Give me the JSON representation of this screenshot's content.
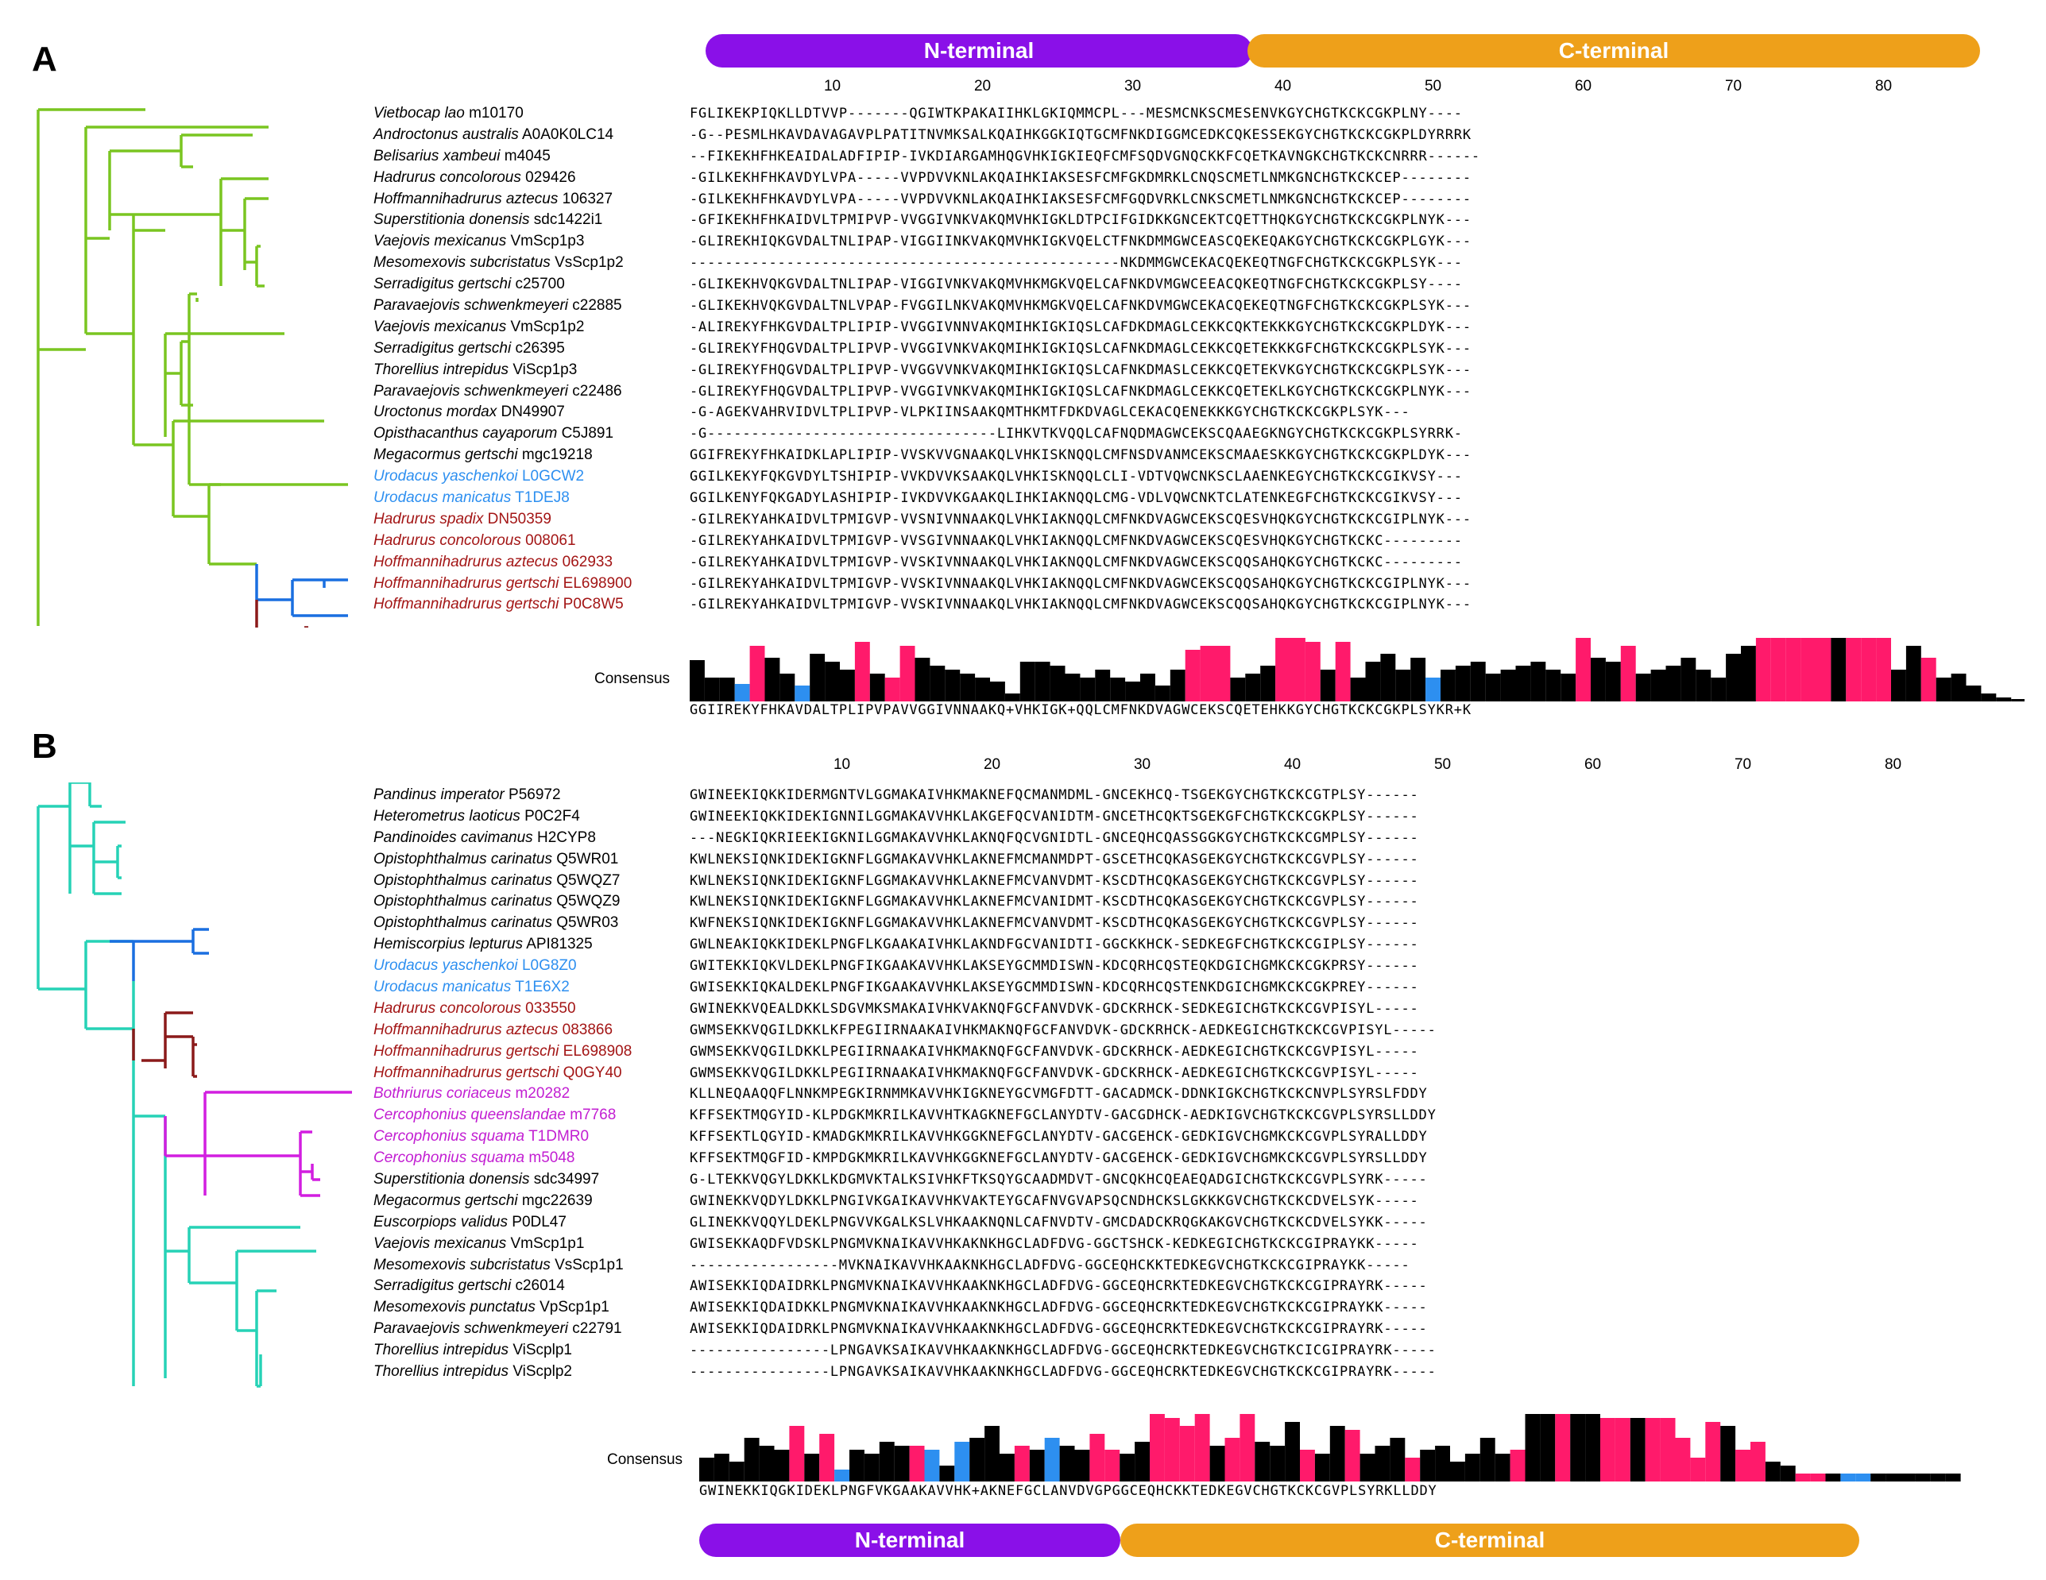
{
  "colors": {
    "nterm": "#8a10e8",
    "cterm": "#eea01a",
    "black": "#000000",
    "pink": "#ff1a6b",
    "blue": "#2d8ff0",
    "treeA": "#7ac521",
    "treeB": "#26d2b6",
    "cladeBlue": "#1a6fe0",
    "cladeRed": "#8b1a1a",
    "cladeMagenta": "#d21ee0"
  },
  "panelA": {
    "letter": "A",
    "nterm_label": "N-terminal",
    "cterm_label": "C-terminal",
    "ticks": [
      "10",
      "20",
      "30",
      "40",
      "50",
      "60",
      "70",
      "80"
    ],
    "consensus_label": "Consensus",
    "consensus_seq": "GGIIREKYFHKAVDALTPLIPVPAVVGGIVNNAAKQ+VHKIGK+QQLCMFNKDVAGWCEKSCQETEHKKGYCHGTKCKCGKPLSYKR+K",
    "consensus_cols": [
      "k",
      "k",
      "k",
      "b",
      "p",
      "k",
      "k",
      "b",
      "k",
      "k",
      "k",
      "p",
      "k",
      "p",
      "p",
      "k",
      "k",
      "k",
      "k",
      "k",
      "k",
      "k",
      "k",
      "k",
      "k",
      "k",
      "k",
      "k",
      "k",
      "k",
      "k",
      "k",
      "k",
      "p",
      "p",
      "p",
      "k",
      "k",
      "k",
      "p",
      "p",
      "p",
      "k",
      "p",
      "k",
      "k",
      "k",
      "k",
      "k",
      "b",
      "k",
      "k",
      "k",
      "k",
      "k",
      "k",
      "k",
      "k",
      "k",
      "p",
      "k",
      "k",
      "p",
      "k",
      "k",
      "k",
      "k",
      "k",
      "k",
      "k",
      "k",
      "p",
      "p",
      "p",
      "p",
      "p",
      "k",
      "p",
      "p",
      "p",
      "k",
      "k",
      "p",
      "k",
      "k",
      "k",
      "k",
      "k",
      "k"
    ],
    "consensus_h": [
      52,
      30,
      30,
      22,
      70,
      55,
      35,
      20,
      60,
      50,
      40,
      75,
      35,
      30,
      70,
      55,
      45,
      40,
      35,
      30,
      25,
      10,
      50,
      50,
      45,
      35,
      30,
      40,
      30,
      25,
      35,
      20,
      40,
      65,
      70,
      70,
      30,
      35,
      45,
      80,
      80,
      75,
      40,
      75,
      30,
      50,
      60,
      40,
      55,
      30,
      40,
      45,
      50,
      35,
      40,
      45,
      50,
      40,
      35,
      80,
      55,
      50,
      70,
      35,
      40,
      45,
      55,
      40,
      30,
      60,
      70,
      80,
      80,
      80,
      80,
      80,
      80,
      80,
      80,
      80,
      40,
      70,
      55,
      30,
      35,
      20,
      10,
      5,
      3
    ],
    "taxa": [
      {
        "genus": "Vietbocap lao",
        "id": "m10170",
        "color": "#000000",
        "seq": "FGLIKEKPIQKLLDTVVP-------QGIWTKPAKAIIHKLGKIQMMCPL---MESMCNKSCMESENVKGYCHGTKCKCGKPLNY----"
      },
      {
        "genus": "Androctonus australis",
        "id": "A0A0K0LC14",
        "color": "#000000",
        "seq": "-G--PESMLHKAVDAVAGAVPLPATITNVMKSALKQAIHKGGKIQTGCMFNKDIGGMCEDKCQKESSEKGYCHGTKCKCGKPLDYRRRK"
      },
      {
        "genus": "Belisarius xambeui",
        "id": "m4045",
        "color": "#000000",
        "seq": "--FIKEKHFHKEAIDALADFIPIP-IVKDIARGAMHQGVHKIGKIEQFCMFSQDVGNQCKKFCQETKAVNGKCHGTKCKCNRRR------"
      },
      {
        "genus": "Hadrurus concolorous",
        "id": "029426",
        "color": "#000000",
        "seq": "-GILKEKHFHKAVDYLVPA-----VVPDVVKNLAKQAIHKIAKSESFCMFGKDMRKLCNQSCMETLNMKGNCHGTKCKCEP--------"
      },
      {
        "genus": "Hoffmannihadrurus aztecus",
        "id": "106327",
        "color": "#000000",
        "seq": "-GILKEKHFHKAVDYLVPA-----VVPDVVKNLAKQAIHKIAKSESFCMFGQDVRKLCNKSCMETLNMKGNCHGTKCKCEP--------"
      },
      {
        "genus": "Superstitionia donensis",
        "id": "sdc1422i1",
        "color": "#000000",
        "seq": "-GFIKEKHFHKAIDVLTPMIPVP-VVGGIVNKVAKQMVHKIGKLDTPCIFGIDKKGNCEKTCQETTHQKGYCHGTKCKCGKPLNYK---"
      },
      {
        "genus": "Vaejovis mexicanus",
        "id": "VmScp1p3",
        "color": "#000000",
        "seq": "-GLIREKHIQKGVDALTNLIPAP-VIGGIINKVAKQMVHKIGKVQELCTFNKDMMGWCEASCQEKEQAKGYCHGTKCKCGKPLGYK---"
      },
      {
        "genus": "Mesomexovis subcristatus",
        "id": "VsScp1p2",
        "color": "#000000",
        "seq": "-------------------------------------------------NKDMMGWCEKACQEKEQTNGFCHGTKCKCGKPLSYK---"
      },
      {
        "genus": "Serradigitus gertschi",
        "id": "c25700",
        "color": "#000000",
        "seq": "-GLIKEKHVQKGVDALTNLIPAP-VIGGIVNKVAKQMVHKMGKVQELCAFNKDVMGWCEEACQKEQTNGFCHGTKCKCGKPLSY----"
      },
      {
        "genus": "Paravaejovis schwenkmeyeri",
        "id": "c22885",
        "color": "#000000",
        "seq": "-GLIKEKHVQKGVDALTNLVPAP-FVGGILNKVAKQMVHKMGKVQELCAFNKDVMGWCEKACQEKEQTNGFCHGTKCKCGKPLSYK---"
      },
      {
        "genus": "Vaejovis mexicanus",
        "id": "VmScp1p2",
        "color": "#000000",
        "seq": "-ALIREKYFHKGVDALTPLIPIP-VVGGIVNNVAKQMIHKIGKIQSLCAFDKDMAGLCEKKCQKTEKKKGYCHGTKCKCGKPLDYK---"
      },
      {
        "genus": "Serradigitus gertschi",
        "id": "c26395",
        "color": "#000000",
        "seq": "-GLIREKYFHQGVDALTPLIPVP-VVGGIVNKVAKQMIHKIGKIQSLCAFNKDMAGLCEKKCQETEKKKGFCHGTKCKCGKPLSYK---"
      },
      {
        "genus": "Thorellius intrepidus",
        "id": "ViScp1p3",
        "color": "#000000",
        "seq": "-GLIREKYFHQGVDALTPLIPVP-VVGGVVNKVAKQMIHKIGKIQSLCAFNKDMASLCEKKCQETEKVKGYCHGTKCKCGKPLSYK---"
      },
      {
        "genus": "Paravaejovis schwenkmeyeri",
        "id": "c22486",
        "color": "#000000",
        "seq": "-GLIREKYFHQGVDALTPLIPVP-VVGGIVNKVAKQMIHKIGKIQSLCAFNKDMAGLCEKKCQETEKLKGYCHGTKCKCGKPLNYK---"
      },
      {
        "genus": "Uroctonus mordax",
        "id": "DN49907",
        "color": "#000000",
        "seq": "-G-AGEKVAHRVIDVLTPLIPVP-VLPKIINSAAKQMTHKMTFDKDVAGLCEKACQENEKKKGYCHGTKCKCGKPLSYK---"
      },
      {
        "genus": "Opisthacanthus cayaporum",
        "id": "C5J891",
        "color": "#000000",
        "seq": "-G---------------------------------LIHKVTKVQQLCAFNQDMAGWCEKSCQAAEGKNGYCHGTKCKCGKPLSYRRK-"
      },
      {
        "genus": "Megacormus gertschi",
        "id": "mgc19218",
        "color": "#000000",
        "seq": "GGIFREKYFHKAIDKLAPLIPIP-VVSKVVGNAAKQLVHKISKNQQLCMFNSDVANMCEKSCMAAESKKGYCHGTKCKCGKPLDYK---"
      },
      {
        "genus": "Urodacus yaschenkoi",
        "id": "L0GCW2",
        "color": "#2d8ff0",
        "seq": "GGILKEKYFQKGVDYLTSHIPIP-VVKDVVKSAAKQLVHKISKNQQLCLI-VDTVQWCNKSCLAAENKEGYCHGTKCKCGIKVSY---"
      },
      {
        "genus": "Urodacus manicatus",
        "id": "T1DEJ8",
        "color": "#2d8ff0",
        "seq": "GGILKENYFQKGADYLASHIPIP-IVKDVVKGAAKQLIHKIAKNQQLCMG-VDLVQWCNKTCLATENKEGFCHGTKCKCGIKVSY---"
      },
      {
        "genus": "Hadrurus spadix",
        "id": "DN50359",
        "color": "#a31515",
        "seq": "-GILREKYAHKAIDVLTPMIGVP-VVSNIVNNAAKQLVHKIAKNQQLCMFNKDVAGWCEKSCQESVHQKGYCHGTKCKCGIPLNYK---"
      },
      {
        "genus": "Hadrurus concolorous",
        "id": "008061",
        "color": "#a31515",
        "seq": "-GILREKYAHKAIDVLTPMIGVP-VVSGIVNNAAKQLVHKIAKNQQLCMFNKDVAGWCEKSCQESVHQKGYCHGTKCKC---------"
      },
      {
        "genus": "Hoffmannihadrurus aztecus",
        "id": "062933",
        "color": "#a31515",
        "seq": "-GILREKYAHKAIDVLTPMIGVP-VVSKIVNNAAKQLVHKIAKNQQLCMFNKDVAGWCEKSCQQSAHQKGYCHGTKCKC---------"
      },
      {
        "genus": "Hoffmannihadrurus gertschi",
        "id": "EL698900",
        "color": "#a31515",
        "seq": "-GILREKYAHKAIDVLTPMIGVP-VVSKIVNNAAKQLVHKIAKNQQLCMFNKDVAGWCEKSCQQSAHQKGYCHGTKCKCGIPLNYK---"
      },
      {
        "genus": "Hoffmannihadrurus gertschi",
        "id": "P0C8W5",
        "color": "#a31515",
        "seq": "-GILREKYAHKAIDVLTPMIGVP-VVSKIVNNAAKQLVHKIAKNQQLCMFNKDVAGWCEKSCQQSAHQKGYCHGTKCKCGIPLNYK---"
      }
    ]
  },
  "panelB": {
    "letter": "B",
    "nterm_label": "N-terminal",
    "cterm_label": "C-terminal",
    "ticks": [
      "10",
      "20",
      "30",
      "40",
      "50",
      "60",
      "70",
      "80"
    ],
    "consensus_label": "Consensus",
    "consensus_seq": "GWINEKKIQGKIDEKLPNGFVKGAAKAVVHK+AKNEFGCLANVDVGPGGCEQHCKKTEDKEGVCHGTKCKCGVPLSYRKLLDDY",
    "consensus_cols": [
      "k",
      "k",
      "k",
      "k",
      "k",
      "k",
      "p",
      "k",
      "p",
      "b",
      "k",
      "k",
      "k",
      "k",
      "p",
      "b",
      "k",
      "b",
      "k",
      "k",
      "k",
      "p",
      "k",
      "b",
      "k",
      "k",
      "p",
      "p",
      "k",
      "k",
      "p",
      "p",
      "p",
      "p",
      "k",
      "p",
      "p",
      "k",
      "k",
      "k",
      "p",
      "k",
      "k",
      "p",
      "k",
      "k",
      "k",
      "p",
      "k",
      "k",
      "k",
      "k",
      "k",
      "k",
      "p",
      "k",
      "k",
      "p",
      "k",
      "k",
      "p",
      "p",
      "k",
      "p",
      "p",
      "p",
      "p",
      "p",
      "k",
      "p",
      "p",
      "k",
      "k",
      "p",
      "p",
      "k",
      "b",
      "b",
      "k",
      "k",
      "k",
      "k",
      "k",
      "k"
    ],
    "consensus_h": [
      30,
      35,
      25,
      55,
      45,
      40,
      70,
      35,
      60,
      15,
      40,
      35,
      50,
      45,
      45,
      40,
      20,
      50,
      55,
      70,
      35,
      45,
      40,
      55,
      45,
      40,
      60,
      40,
      35,
      50,
      85,
      80,
      70,
      85,
      45,
      55,
      85,
      50,
      45,
      75,
      40,
      35,
      70,
      65,
      35,
      45,
      55,
      30,
      40,
      45,
      25,
      35,
      55,
      35,
      40,
      85,
      85,
      85,
      85,
      85,
      80,
      80,
      80,
      80,
      80,
      55,
      30,
      75,
      70,
      40,
      50,
      25,
      20,
      10,
      10,
      10,
      10,
      10,
      10,
      10,
      10,
      10,
      10,
      10
    ],
    "taxa": [
      {
        "genus": "Pandinus imperator",
        "id": "P56972",
        "color": "#000000",
        "seq": "GWINEEKIQKKIDERMGNTVLGGMAKAIVHKMAKNEFQCMANMDML-GNCEKHCQ-TSGEKGYCHGTKCKCGTPLSY------"
      },
      {
        "genus": "Heterometrus laoticus",
        "id": "P0C2F4",
        "color": "#000000",
        "seq": "GWINEEKIQKKIDEKIGNNILGGMAKAVVHKLAKGEFQCVANIDTM-GNCETHCQKTSGEKGFCHGTKCKCGKPLSY------"
      },
      {
        "genus": "Pandinoides cavimanus",
        "id": "H2CYP8",
        "color": "#000000",
        "seq": "---NEGKIQKRIEEKIGKNILGGMAKAVVHKLAKNQFQCVGNIDTL-GNCEQHCQASSGGKGYCHGTKCKCGMPLSY------"
      },
      {
        "genus": "Opistophthalmus carinatus",
        "id": "Q5WR01",
        "color": "#000000",
        "seq": "KWLNEKSIQNKIDEKIGKNFLGGMAKAVVHKLAKNEFMCMANMDPT-GSCETHCQKASGEKGYCHGTKCKCGVPLSY------"
      },
      {
        "genus": "Opistophthalmus carinatus",
        "id": "Q5WQZ7",
        "color": "#000000",
        "seq": "KWLNEKSIQNKIDEKIGKNFLGGMAKAVVHKLAKNEFMCVANVDMT-KSCDTHCQKASGEKGYCHGTKCKCGVPLSY------"
      },
      {
        "genus": "Opistophthalmus carinatus",
        "id": "Q5WQZ9",
        "color": "#000000",
        "seq": "KWLNEKSIQNKIDEKIGKNFLGGMAKAVVHKLAKNEFMCVANIDMT-KSCDTHCQKASGEKGYCHGTKCKCGVPLSY------"
      },
      {
        "genus": "Opistophthalmus carinatus",
        "id": "Q5WR03",
        "color": "#000000",
        "seq": "KWFNEKSIQNKIDEKIGKNFLGGMAKAVVHKLAKNEFMCVANVDMT-KSCDTHCQKASGEKGYCHGTKCKCGVPLSY------"
      },
      {
        "genus": "Hemiscorpius lepturus",
        "id": "API81325",
        "color": "#000000",
        "seq": "GWLNEAKIQKKIDEKLPNGFLKGAAKAIVHKLAKNDFGCVANIDTI-GGCKKHCK-SEDKEGFCHGTKCKCGIPLSY------"
      },
      {
        "genus": "Urodacus yaschenkoi",
        "id": "L0G8Z0",
        "color": "#2d8ff0",
        "seq": "GWITEKKIQKVLDEKLPNGFIKGAAKAVVHKLAKSEYGCMMDISWN-KDCQRHCQSTEQKDGICHGMKCKCGKPRSY------"
      },
      {
        "genus": "Urodacus manicatus",
        "id": "T1E6X2",
        "color": "#2d8ff0",
        "seq": "GWISEKKIQKALDEKLPNGFIKGAAKAVVHKLAKSEYGCMMDISWN-KDCQRHCQSTENKDGICHGMKCKCGKPREY------"
      },
      {
        "genus": "Hadrurus concolorous",
        "id": "033550",
        "color": "#a31515",
        "seq": "GWINEKKVQEALDKKLSDGVMKSMAKAIVHKVAKNQFGCFANVDVK-GDCKRHCK-SEDKEGICHGTKCKCGVPISYL-----"
      },
      {
        "genus": "Hoffmannihadrurus aztecus",
        "id": "083866",
        "color": "#a31515",
        "seq": "GWMSEKKVQGILDKKLKFPEGIIRNAAKAIVHKMAKNQFGCFANVDVK-GDCKRHCK-AEDKEGICHGTKCKCGVPISYL-----"
      },
      {
        "genus": "Hoffmannihadrurus gertschi",
        "id": "EL698908",
        "color": "#a31515",
        "seq": "GWMSEKKVQGILDKKLPEGIIRNAAKAIVHKMAKNQFGCFANVDVK-GDCKRHCK-AEDKEGICHGTKCKCGVPISYL-----"
      },
      {
        "genus": "Hoffmannihadrurus gertschi",
        "id": "Q0GY40",
        "color": "#a31515",
        "seq": "GWMSEKKVQGILDKKLPEGIIRNAAKAIVHKMAKNQFGCFANVDVK-GDCKRHCK-AEDKEGICHGTKCKCGVPISYL-----"
      },
      {
        "genus": "Bothriurus coriaceus",
        "id": "m20282",
        "color": "#c21ed2",
        "seq": "KLLNEQAAQQFLNNKMPEGKIRNMMKAVVHKIGKNEYGCVMGFDTT-GACADMCK-DDNKIGKCHGTKCKCNVPLSYRSLFDDY"
      },
      {
        "genus": "Cercophonius queenslandae",
        "id": "m7768",
        "color": "#c21ed2",
        "seq": "KFFSEKTMQGYID-KLPDGKMKRILKAVVHTKAGKNEFGCLANYDTV-GACGDHCK-AEDKIGVCHGTKCKCGVPLSYRSLLDDY"
      },
      {
        "genus": "Cercophonius squama",
        "id": "T1DMR0",
        "color": "#c21ed2",
        "seq": "KFFSEKTLQGYID-KMADGKMKRILKAVVHKGGKNEFGCLANYDTV-GACGEHCK-GEDKIGVCHGMKCKCGVPLSYRALLDDY"
      },
      {
        "genus": "Cercophonius squama",
        "id": "m5048",
        "color": "#c21ed2",
        "seq": "KFFSEKTMQGFID-KMPDGKMKRILKAVVHKGGKNEFGCLANYDTV-GACGEHCK-GEDKIGVCHGMKCKCGVPLSYRSLLDDY"
      },
      {
        "genus": "Superstitionia donensis",
        "id": "sdc34997",
        "color": "#000000",
        "seq": "G-LTEKKVQGYLDKKLKDGMVKTALKSIVHKFTKSQYGCAADMDVT-GNCQKHCQEAEQADGICHGTKCKCGVPLSYRK-----"
      },
      {
        "genus": "Megacormus gertschi",
        "id": "mgc22639",
        "color": "#000000",
        "seq": "GWINEKKVQDYLDKKLPNGIVKGAIKAVVHKVAKTEYGCAFNVGVAPSQCNDHCKSLGKKKGVCHGTKCKCDVELSYK-----"
      },
      {
        "genus": "Euscorpiops validus",
        "id": "P0DL47",
        "color": "#000000",
        "seq": "GLINEKKVQQYLDEKLPNGVVKGALKSLVHKAAKNQNLCAFNVDTV-GMCDADCKRQGKAKGVCHGTKCKCDVELSYKK-----"
      },
      {
        "genus": "Vaejovis mexicanus",
        "id": "VmScp1p1",
        "color": "#000000",
        "seq": "GWISEKKAQDFVDSKLPNGMVKNAIKAVVHKAKNKHGCLADFDVG-GGCTSHCK-KEDKEGICHGTKCKCGIPRAYKK-----"
      },
      {
        "genus": "Mesomexovis subcristatus",
        "id": "VsScp1p1",
        "color": "#000000",
        "seq": "-----------------MVKNAIKAVVHKAAKNKHGCLADFDVG-GGCEQHCKKTEDKEGVCHGTKCKCGIPRAYKK-----"
      },
      {
        "genus": "Serradigitus gertschi",
        "id": "c26014",
        "color": "#000000",
        "seq": "AWISEKKIQDAIDRKLPNGMVKNAIKAVVHKAAKNKHGCLADFDVG-GGCEQHCRKTEDKEGVCHGTKCKCGIPRAYRK-----"
      },
      {
        "genus": "Mesomexovis punctatus",
        "id": "VpScp1p1",
        "color": "#000000",
        "seq": "AWISEKKIQDAIDKKLPNGMVKNAIKAVVHKAAKNKHGCLADFDVG-GGCEQHCRKTEDKEGVCHGTKCKCGIPRAYKK-----"
      },
      {
        "genus": "Paravaejovis schwenkmeyeri",
        "id": "c22791",
        "color": "#000000",
        "seq": "AWISEKKIQDAIDRKLPNGMVKNAIKAVVHKAAKNKHGCLADFDVG-GGCEQHCRKTEDKEGVCHGTKCKCGIPRAYRK-----"
      },
      {
        "genus": "Thorellius intrepidus",
        "id": "ViScplp1",
        "color": "#000000",
        "seq": "----------------LPNGAVKSAIKAVVHKAAKNKHGCLADFDVG-GGCEQHCRKTEDKEGVCHGTKCICGIPRAYRK-----"
      },
      {
        "genus": "Thorellius intrepidus",
        "id": "ViScplp2",
        "color": "#000000",
        "seq": "----------------LPNGAVKSAIKAVVHKAAKNKHGCLADFDVG-GGCEQHCRKTEDKEGVCHGTKCKCGIPRAYRK-----"
      }
    ]
  }
}
